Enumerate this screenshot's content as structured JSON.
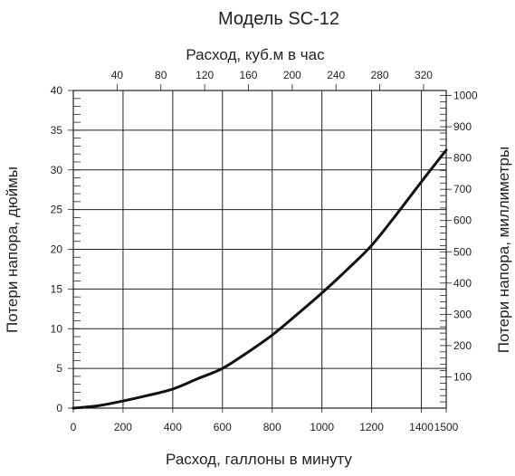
{
  "chart_data": {
    "type": "line",
    "title": "Модель SC-12",
    "xlabel": "Расход, галлоны в минуту",
    "ylabel": "Потери напора, дюймы",
    "x2label": "Расход, куб.м в час",
    "y2label": "Потери напора, миллиметры",
    "xlim": [
      0,
      1500
    ],
    "ylim": [
      0,
      40
    ],
    "x2lim": [
      0,
      340.7
    ],
    "y2lim": [
      0,
      1016
    ],
    "grid": true,
    "x_ticks": [
      0,
      200,
      400,
      600,
      800,
      1000,
      1200,
      1400,
      1500
    ],
    "x_tick_labels": [
      "0",
      "200",
      "400",
      "600",
      "800",
      "1000",
      "1200",
      "1400",
      "1500"
    ],
    "y_ticks": [
      0,
      5,
      10,
      15,
      20,
      25,
      30,
      35,
      40
    ],
    "y_tick_labels": [
      "0",
      "5",
      "10",
      "15",
      "20",
      "25",
      "30",
      "35",
      "40"
    ],
    "x2_ticks": [
      40,
      80,
      120,
      160,
      200,
      240,
      280,
      320
    ],
    "x2_tick_labels": [
      "40",
      "80",
      "120",
      "160",
      "200",
      "240",
      "280",
      "320"
    ],
    "y2_ticks": [
      100,
      200,
      300,
      400,
      500,
      600,
      700,
      800,
      900,
      1000
    ],
    "y2_tick_labels": [
      "100",
      "200",
      "300",
      "400",
      "500",
      "600",
      "700",
      "800",
      "900",
      "1000"
    ],
    "series": [
      {
        "x": [
          0,
          100,
          200,
          300,
          400,
          500,
          600,
          700,
          800,
          900,
          1000,
          1100,
          1200,
          1300,
          1400,
          1500
        ],
        "y": [
          0,
          0.3,
          0.9,
          1.6,
          2.4,
          3.7,
          5.0,
          7.0,
          9.2,
          11.8,
          14.5,
          17.4,
          20.5,
          24.4,
          28.5,
          32.5
        ],
        "color": "#111111"
      }
    ]
  }
}
